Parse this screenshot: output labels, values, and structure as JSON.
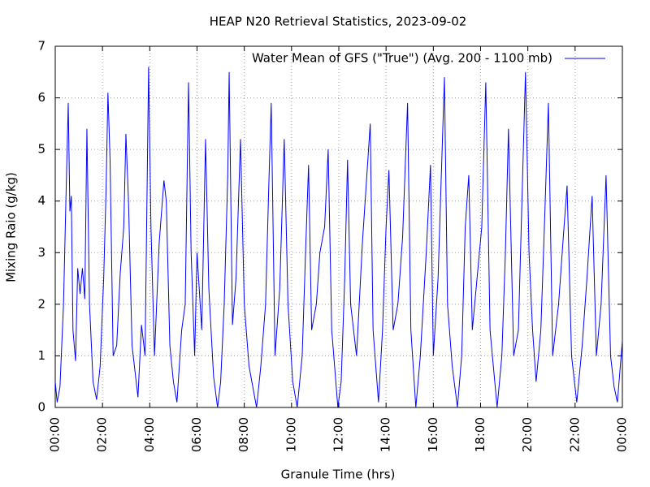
{
  "chart_data": {
    "type": "line",
    "title": "HEAP N20 Retrieval Statistics, 2023-09-02",
    "x_label": "Granule Time (hrs)",
    "y_label": "Mixing Raio (g/kg)",
    "xlim": [
      0,
      24
    ],
    "ylim": [
      0,
      7
    ],
    "xticks": [
      {
        "value": 0,
        "label": "00:00"
      },
      {
        "value": 2,
        "label": "02:00"
      },
      {
        "value": 4,
        "label": "04:00"
      },
      {
        "value": 6,
        "label": "06:00"
      },
      {
        "value": 8,
        "label": "08:00"
      },
      {
        "value": 10,
        "label": "10:00"
      },
      {
        "value": 12,
        "label": "12:00"
      },
      {
        "value": 14,
        "label": "14:00"
      },
      {
        "value": 16,
        "label": "16:00"
      },
      {
        "value": 18,
        "label": "18:00"
      },
      {
        "value": 20,
        "label": "20:00"
      },
      {
        "value": 22,
        "label": "22:00"
      },
      {
        "value": 24,
        "label": "00:00"
      }
    ],
    "yticks": [
      0,
      1,
      2,
      3,
      4,
      5,
      6,
      7
    ],
    "grid": true,
    "legend": "top-right",
    "x": [
      0,
      0.08,
      0.2,
      0.35,
      0.45,
      0.55,
      0.62,
      0.68,
      0.75,
      0.86,
      0.95,
      1.05,
      1.15,
      1.25,
      1.34,
      1.45,
      1.6,
      1.75,
      1.9,
      2.05,
      2.15,
      2.23,
      2.32,
      2.45,
      2.6,
      2.75,
      2.9,
      2.99,
      3.1,
      3.25,
      3.5,
      3.65,
      3.8,
      3.95,
      4.05,
      4.2,
      4.4,
      4.6,
      4.7,
      4.85,
      5.0,
      5.15,
      5.35,
      5.5,
      5.64,
      5.75,
      5.9,
      6.0,
      6.2,
      6.36,
      6.5,
      6.7,
      6.87,
      7.0,
      7.15,
      7.3,
      7.36,
      7.5,
      7.65,
      7.84,
      8.0,
      8.2,
      8.52,
      8.7,
      8.9,
      9.05,
      9.14,
      9.3,
      9.5,
      9.69,
      9.85,
      10.05,
      10.24,
      10.45,
      10.6,
      10.72,
      10.85,
      11.05,
      11.2,
      11.4,
      11.55,
      11.7,
      11.96,
      12.1,
      12.25,
      12.37,
      12.5,
      12.75,
      13.0,
      13.33,
      13.45,
      13.68,
      13.85,
      14.0,
      14.12,
      14.3,
      14.5,
      14.7,
      14.91,
      15.05,
      15.26,
      15.45,
      15.7,
      15.88,
      16.0,
      16.2,
      16.47,
      16.6,
      16.8,
      17.02,
      17.2,
      17.35,
      17.5,
      17.65,
      17.85,
      18.05,
      18.22,
      18.4,
      18.7,
      18.9,
      19.05,
      19.18,
      19.4,
      19.6,
      19.9,
      20.05,
      20.2,
      20.35,
      20.55,
      20.7,
      20.87,
      21.05,
      21.3,
      21.5,
      21.66,
      21.85,
      22.07,
      22.3,
      22.5,
      22.72,
      22.9,
      23.1,
      23.31,
      23.5,
      23.65,
      23.79,
      24
    ],
    "series": [
      {
        "name": "Water Mean of GFS (\"True\") (Avg. 200 - 1100 mb)",
        "color": "#0000ff",
        "values": [
          0.5,
          0.1,
          0.4,
          2.0,
          4.0,
          5.9,
          3.8,
          4.1,
          1.5,
          0.9,
          2.7,
          2.2,
          2.7,
          2.1,
          5.4,
          2.0,
          0.5,
          0.15,
          0.8,
          2.5,
          4.2,
          6.1,
          4.8,
          1.0,
          1.2,
          2.6,
          3.5,
          5.3,
          4.0,
          1.2,
          0.2,
          1.6,
          1.0,
          6.6,
          3.5,
          1.0,
          3.2,
          4.4,
          4.0,
          1.2,
          0.5,
          0.1,
          1.5,
          2.0,
          6.3,
          3.0,
          1.0,
          3.0,
          1.5,
          5.2,
          2.3,
          0.6,
          0.0,
          0.5,
          2.0,
          4.5,
          6.5,
          1.6,
          2.5,
          5.2,
          2.0,
          0.8,
          0.0,
          0.8,
          2.0,
          4.5,
          5.9,
          1.0,
          2.3,
          5.2,
          2.0,
          0.5,
          0.0,
          1.0,
          3.1,
          4.7,
          1.5,
          2.0,
          3.0,
          3.5,
          5.0,
          1.5,
          0.0,
          0.5,
          2.5,
          4.8,
          2.0,
          1.0,
          3.2,
          5.5,
          1.5,
          0.1,
          1.5,
          3.5,
          4.6,
          1.5,
          2.0,
          3.3,
          5.9,
          1.5,
          0.0,
          1.0,
          3.0,
          4.7,
          1.0,
          2.5,
          6.4,
          2.0,
          0.8,
          0.0,
          1.0,
          3.5,
          4.5,
          1.5,
          2.5,
          3.5,
          6.3,
          1.5,
          0.0,
          1.0,
          3.0,
          5.4,
          1.0,
          1.5,
          6.5,
          3.0,
          1.5,
          0.5,
          1.5,
          3.5,
          5.9,
          1.0,
          2.0,
          3.3,
          4.3,
          1.0,
          0.1,
          1.2,
          2.5,
          4.1,
          1.0,
          2.0,
          4.5,
          1.0,
          0.4,
          0.1,
          1.3
        ]
      }
    ]
  }
}
